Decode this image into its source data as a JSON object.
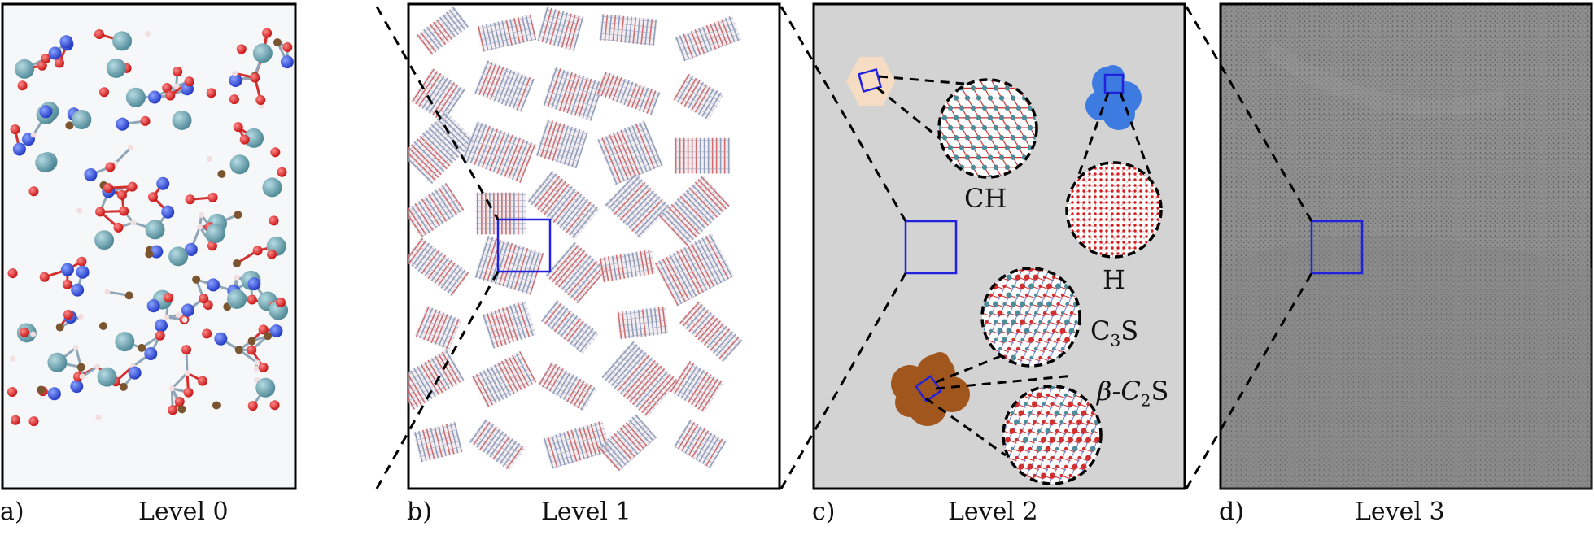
{
  "panels": [
    {
      "letter": "a)",
      "level": "Level 0"
    },
    {
      "letter": "b)",
      "level": "Level 1"
    },
    {
      "letter": "c)",
      "level": "Level 2"
    },
    {
      "letter": "d)",
      "level": "Level 3"
    }
  ],
  "phases": {
    "ch": "CH",
    "h": "H",
    "c3s_base": "C",
    "c3s_sub": "3",
    "c3s_tail": "S",
    "c2s_prefix": "β-C",
    "c2s_sub": "2",
    "c2s_tail": "S"
  },
  "colors": {
    "zoom_box": "#2222dd",
    "ch_particle": "#f6dcc3",
    "h_particle": "#3d7be0",
    "c2s_particle": "#a0561c",
    "level2_bg": "#d3d3d3",
    "level3_bg": "#8f8f8f",
    "atom_oxygen": "#dd1a1a",
    "atom_silicon": "#2a4fd6",
    "atom_calcium": "#4f8c9a",
    "atom_hydrogen": "#f0dada"
  }
}
